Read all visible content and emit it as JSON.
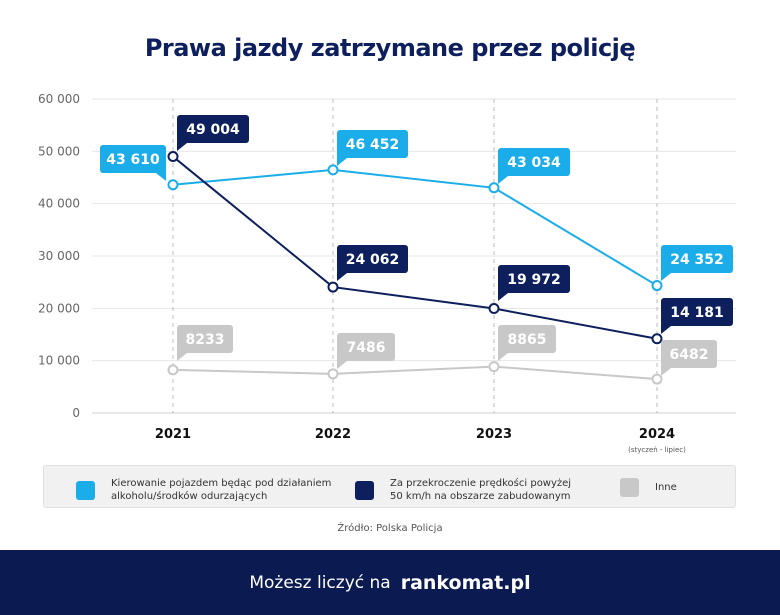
{
  "chart_data": {
    "type": "line",
    "title": "Prawa jazdy zatrzymane przez policję",
    "categories": [
      "2021",
      "2022",
      "2023",
      "2024"
    ],
    "category_notes": [
      "",
      "",
      "",
      "(styczeń - lipiec)"
    ],
    "ylim": [
      0,
      60000
    ],
    "yticks": [
      0,
      10000,
      20000,
      30000,
      40000,
      50000,
      60000
    ],
    "ytick_labels": [
      "0",
      "10 000",
      "20 000",
      "30 000",
      "40 000",
      "50 000",
      "60 000"
    ],
    "grid": true,
    "legend_position": "bottom",
    "series": [
      {
        "name": "Kierowanie pojazdem będąc pod działaniem alkoholu/środków odurzających",
        "color": "#1aade9",
        "values": [
          43610,
          46452,
          43034,
          24352
        ],
        "labels": [
          "43 610",
          "46 452",
          "43 034",
          "24 352"
        ]
      },
      {
        "name": "Za przekroczenie prędkości powyżej 50 km/h na obszarze zabudowanym",
        "color": "#0d1f5c",
        "values": [
          49004,
          24062,
          19972,
          14181
        ],
        "labels": [
          "49 004",
          "24 062",
          "19 972",
          "14 181"
        ]
      },
      {
        "name": "Inne",
        "color": "#c8c8c8",
        "values": [
          8233,
          7486,
          8865,
          6482
        ],
        "labels": [
          "8233",
          "7486",
          "8865",
          "6482"
        ]
      }
    ]
  },
  "legend": {
    "item1_line1": "Kierowanie pojazdem będąc pod działaniem",
    "item1_line2": "alkoholu/środków odurzających",
    "item2_line1": "Za przekroczenie prędkości powyżej",
    "item2_line2": "50 km/h na obszarze zabudowanym",
    "item3": "Inne"
  },
  "source": "Źródło: Polska Policja",
  "footer": {
    "slogan": "Możesz liczyć na",
    "brand": "rankomat.pl"
  }
}
